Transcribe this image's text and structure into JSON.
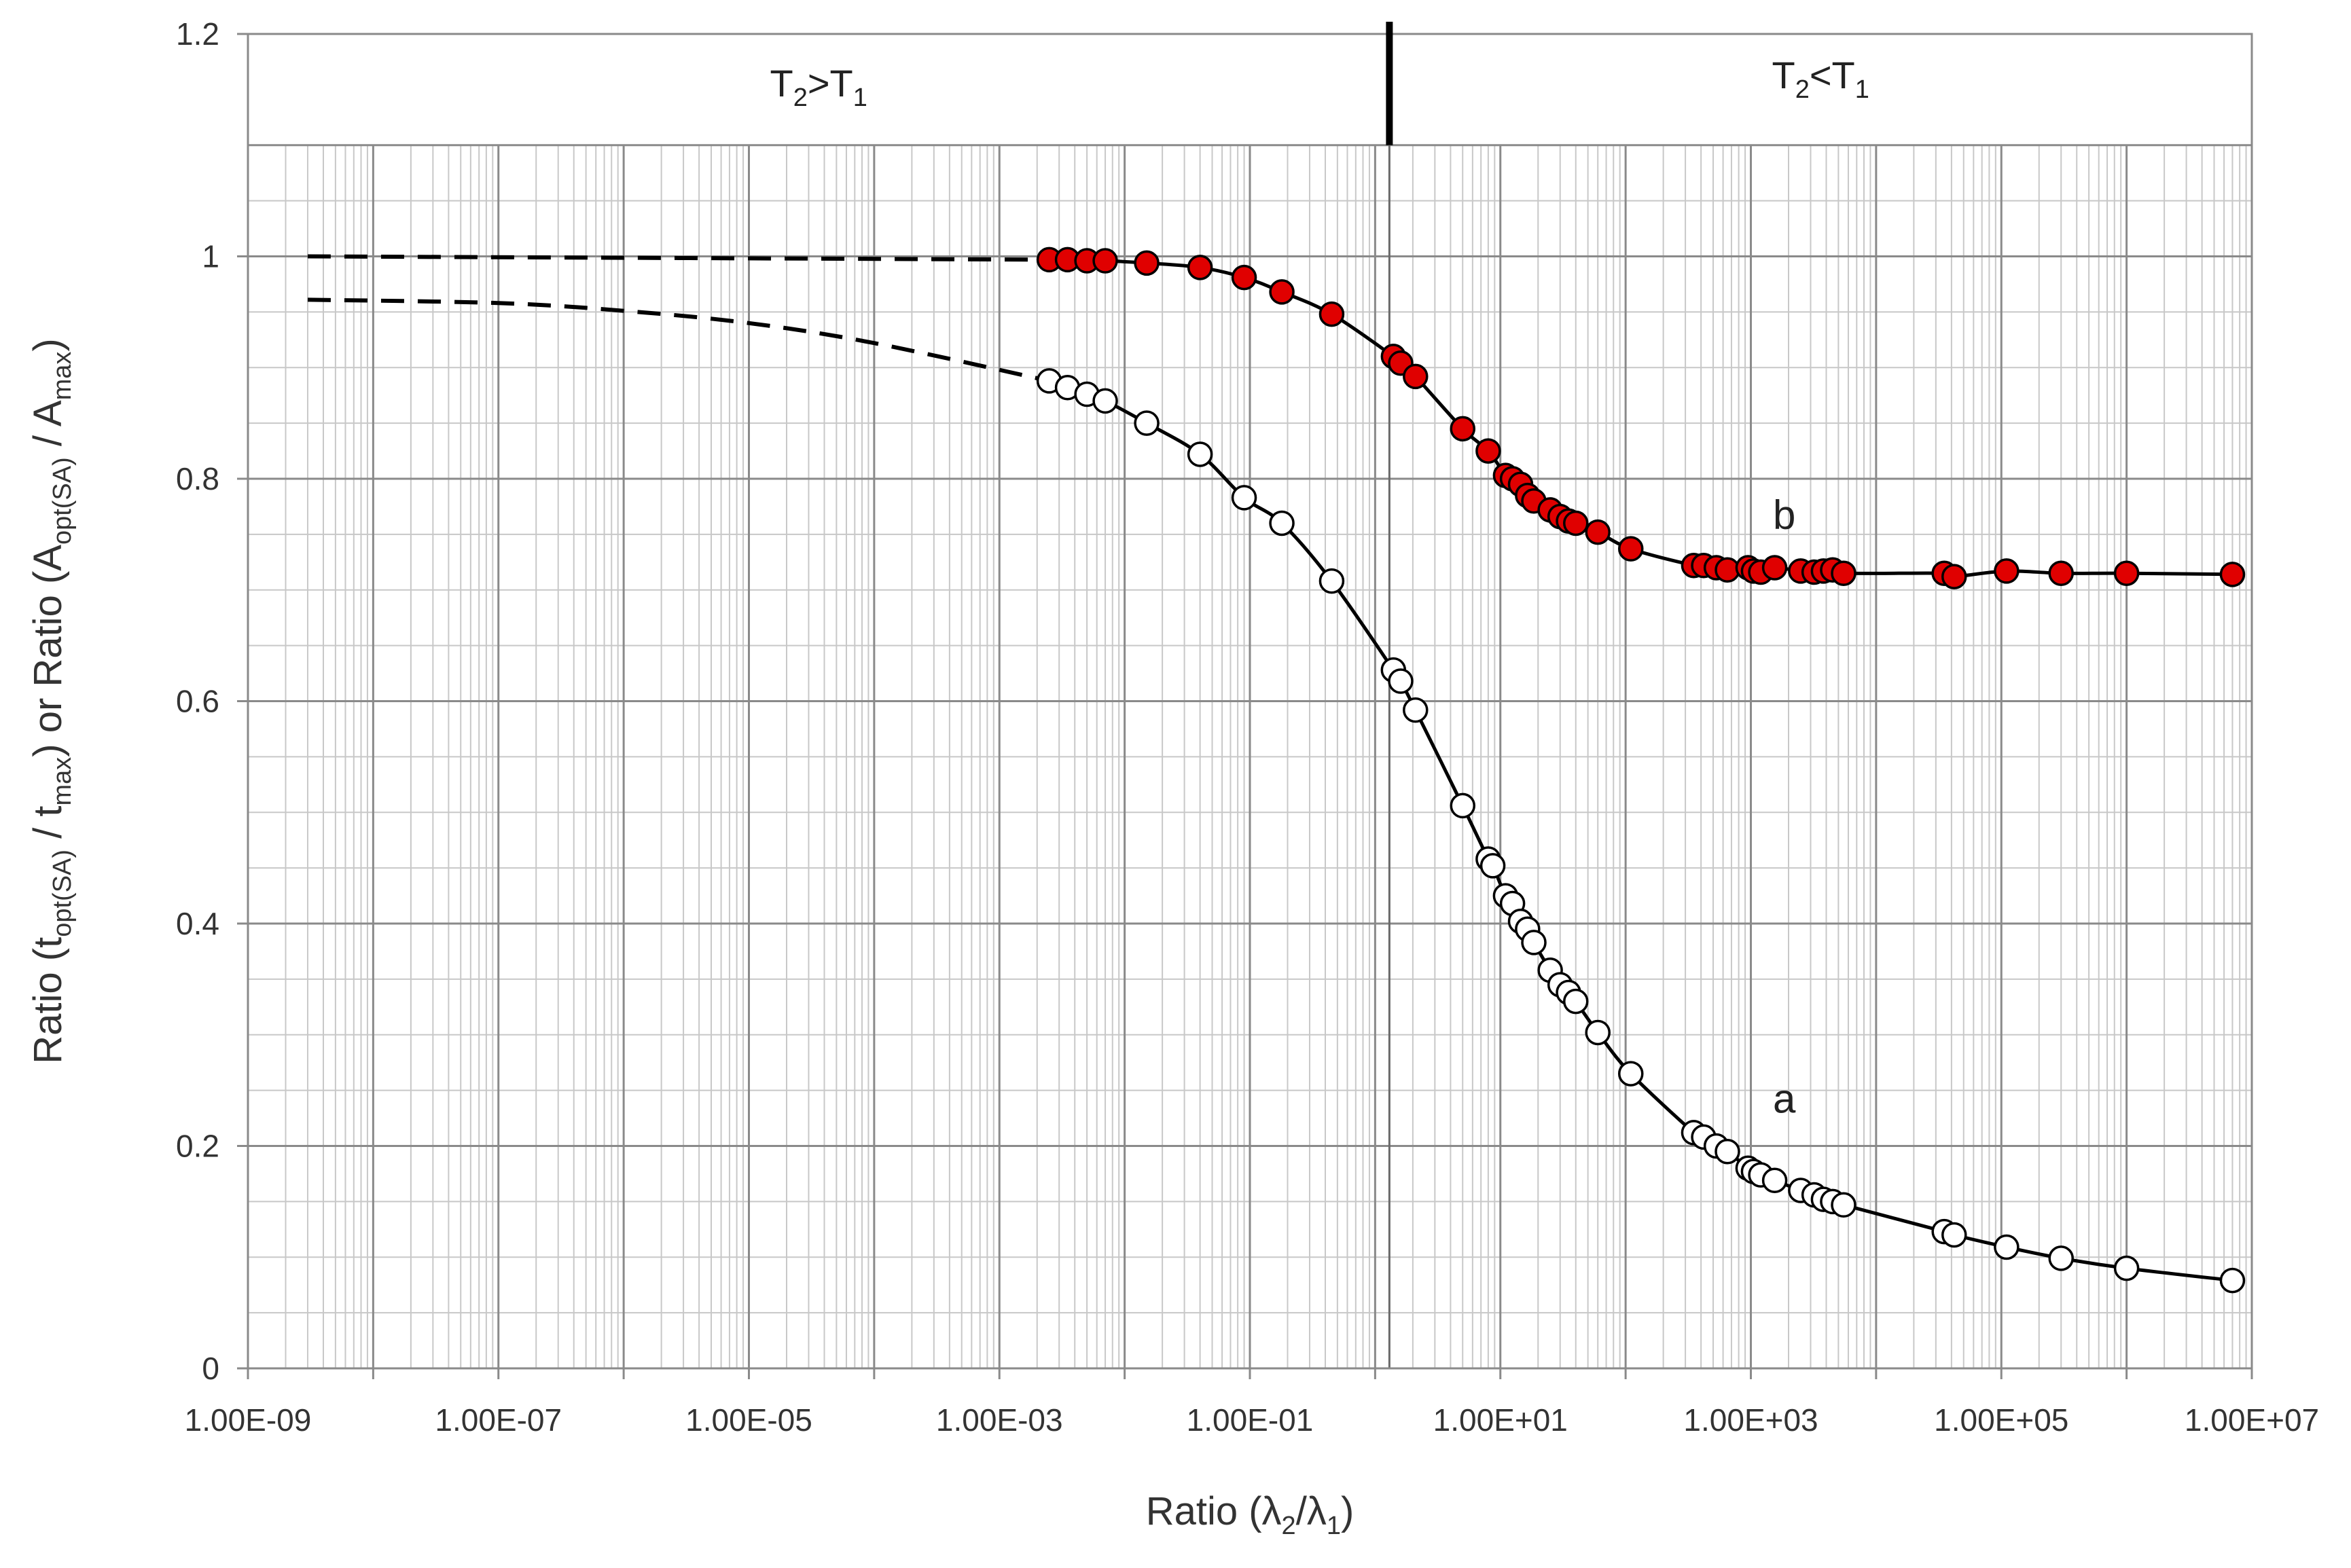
{
  "chart_data": {
    "type": "scatter",
    "xscale": "log",
    "xlim": [
      1e-09,
      10000000.0
    ],
    "ylim": [
      0,
      1.2
    ],
    "xticks": [
      "1.00E-09",
      "1.00E-07",
      "1.00E-05",
      "1.00E-03",
      "1.00E-01",
      "1.00E+01",
      "1.00E+03",
      "1.00E+05",
      "1.00E+07"
    ],
    "yticks": [
      "0",
      "0.2",
      "0.4",
      "0.6",
      "0.8",
      "1",
      "1.2"
    ],
    "grid": true,
    "xlabel": {
      "prefix": "Ratio (",
      "lambda2": "λ",
      "sub2": "2",
      "slash": "/",
      "lambda1": "λ",
      "sub1": "1",
      "suffix": ")"
    },
    "ylabel": {
      "p1": "Ratio (t",
      "s1": "opt(SA)",
      "p2": " / t",
      "s2": "max",
      "p3": ") or Ratio (A",
      "s3": "opt(SA)",
      "p4": " / A",
      "s4": "max",
      "p5": ")"
    },
    "regions": [
      {
        "t": "T",
        "s1": "2",
        "op": ">",
        "t2": "T",
        "s2": "1"
      },
      {
        "t": "T",
        "s1": "2",
        "op": "<",
        "t2": "T",
        "s2": "1"
      }
    ],
    "divider_x": 1.3,
    "band_y": [
      1.1,
      1.2
    ],
    "series": [
      {
        "name": "a",
        "marker_color": "#ffffff",
        "points": [
          [
            0.0025,
            0.888
          ],
          [
            0.0035,
            0.882
          ],
          [
            0.005,
            0.876
          ],
          [
            0.007,
            0.87
          ],
          [
            0.015,
            0.85
          ],
          [
            0.04,
            0.822
          ],
          [
            0.09,
            0.783
          ],
          [
            0.18,
            0.76
          ],
          [
            0.45,
            0.708
          ],
          [
            1.4,
            0.628
          ],
          [
            1.6,
            0.618
          ],
          [
            2.1,
            0.592
          ],
          [
            5.0,
            0.506
          ],
          [
            8.0,
            0.458
          ],
          [
            8.7,
            0.452
          ],
          [
            11,
            0.425
          ],
          [
            12.5,
            0.418
          ],
          [
            14.5,
            0.402
          ],
          [
            16.5,
            0.395
          ],
          [
            18.5,
            0.383
          ],
          [
            25,
            0.358
          ],
          [
            30,
            0.345
          ],
          [
            35,
            0.338
          ],
          [
            40,
            0.33
          ],
          [
            60,
            0.302
          ],
          [
            110,
            0.265
          ],
          [
            350,
            0.212
          ],
          [
            420,
            0.208
          ],
          [
            530,
            0.2
          ],
          [
            650,
            0.195
          ],
          [
            950,
            0.18
          ],
          [
            1050,
            0.177
          ],
          [
            1200,
            0.174
          ],
          [
            1550,
            0.169
          ],
          [
            2500,
            0.16
          ],
          [
            3200,
            0.156
          ],
          [
            3800,
            0.152
          ],
          [
            4500,
            0.15
          ],
          [
            5500,
            0.147
          ],
          [
            35000,
            0.123
          ],
          [
            42000,
            0.12
          ],
          [
            110000,
            0.109
          ],
          [
            300000,
            0.099
          ],
          [
            1000000,
            0.09
          ],
          [
            7000000,
            0.079
          ]
        ],
        "dashed_extension": [
          [
            3e-09,
            0.961
          ],
          [
            1e-07,
            0.958
          ],
          [
            1e-06,
            0.951
          ],
          [
            1e-05,
            0.94
          ],
          [
            0.0001,
            0.922
          ],
          [
            0.0025,
            0.888
          ]
        ]
      },
      {
        "name": "b",
        "marker_color": "#e00000",
        "points": [
          [
            0.0025,
            0.997
          ],
          [
            0.0035,
            0.997
          ],
          [
            0.005,
            0.996
          ],
          [
            0.007,
            0.996
          ],
          [
            0.015,
            0.994
          ],
          [
            0.04,
            0.99
          ],
          [
            0.09,
            0.981
          ],
          [
            0.18,
            0.968
          ],
          [
            0.45,
            0.948
          ],
          [
            1.4,
            0.91
          ],
          [
            1.6,
            0.904
          ],
          [
            2.1,
            0.892
          ],
          [
            5.0,
            0.845
          ],
          [
            8.0,
            0.825
          ],
          [
            11,
            0.803
          ],
          [
            12.5,
            0.8
          ],
          [
            14.5,
            0.795
          ],
          [
            16.5,
            0.785
          ],
          [
            18.5,
            0.78
          ],
          [
            25,
            0.772
          ],
          [
            30,
            0.766
          ],
          [
            35,
            0.762
          ],
          [
            40,
            0.76
          ],
          [
            60,
            0.752
          ],
          [
            110,
            0.737
          ],
          [
            350,
            0.722
          ],
          [
            420,
            0.722
          ],
          [
            530,
            0.72
          ],
          [
            650,
            0.718
          ],
          [
            950,
            0.72
          ],
          [
            1050,
            0.717
          ],
          [
            1200,
            0.716
          ],
          [
            1550,
            0.72
          ],
          [
            2500,
            0.717
          ],
          [
            3200,
            0.716
          ],
          [
            3800,
            0.717
          ],
          [
            4500,
            0.718
          ],
          [
            5500,
            0.715
          ],
          [
            35000,
            0.715
          ],
          [
            42000,
            0.712
          ],
          [
            110000,
            0.717
          ],
          [
            300000,
            0.715
          ],
          [
            1000000,
            0.715
          ],
          [
            7000000,
            0.714
          ]
        ],
        "dashed_extension": [
          [
            3e-09,
            1.0
          ],
          [
            0.0025,
            0.997
          ]
        ]
      }
    ]
  }
}
